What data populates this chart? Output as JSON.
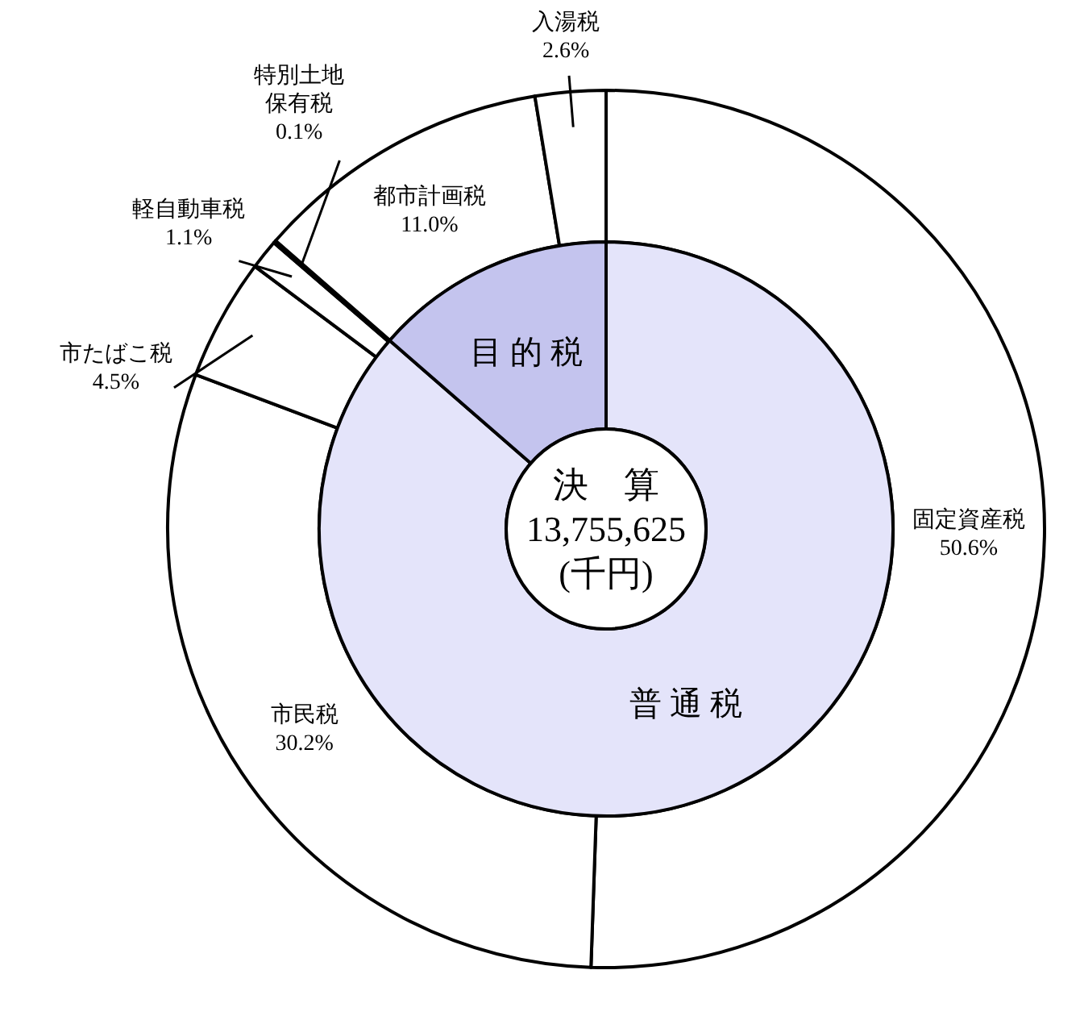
{
  "chart_data": [
    {
      "type": "donut",
      "categories": [
        "固定資産税",
        "市民税",
        "市たばこ税",
        "軽自動車税",
        "特別土地保有税",
        "都市計画税",
        "入湯税"
      ],
      "values": [
        50.6,
        30.2,
        4.5,
        1.1,
        0.1,
        11.0,
        2.6
      ],
      "value_labels": [
        "50.6%",
        "30.2%",
        "4.5%",
        "1.1%",
        "0.1%",
        "11.0%",
        "2.6%"
      ],
      "colors": [
        "#ffffff",
        "#ffffff",
        "#ffffff",
        "#ffffff",
        "#ffffff",
        "#ffffff",
        "#ffffff"
      ]
    },
    {
      "type": "donut",
      "categories": [
        "普 通 税",
        "目 的 税"
      ],
      "values": [
        86.4,
        13.6
      ],
      "colors": [
        "#e4e4fa",
        "#c4c4ee"
      ],
      "annotations": [
        "決　算",
        "13,755,625",
        "(千円)"
      ]
    }
  ]
}
